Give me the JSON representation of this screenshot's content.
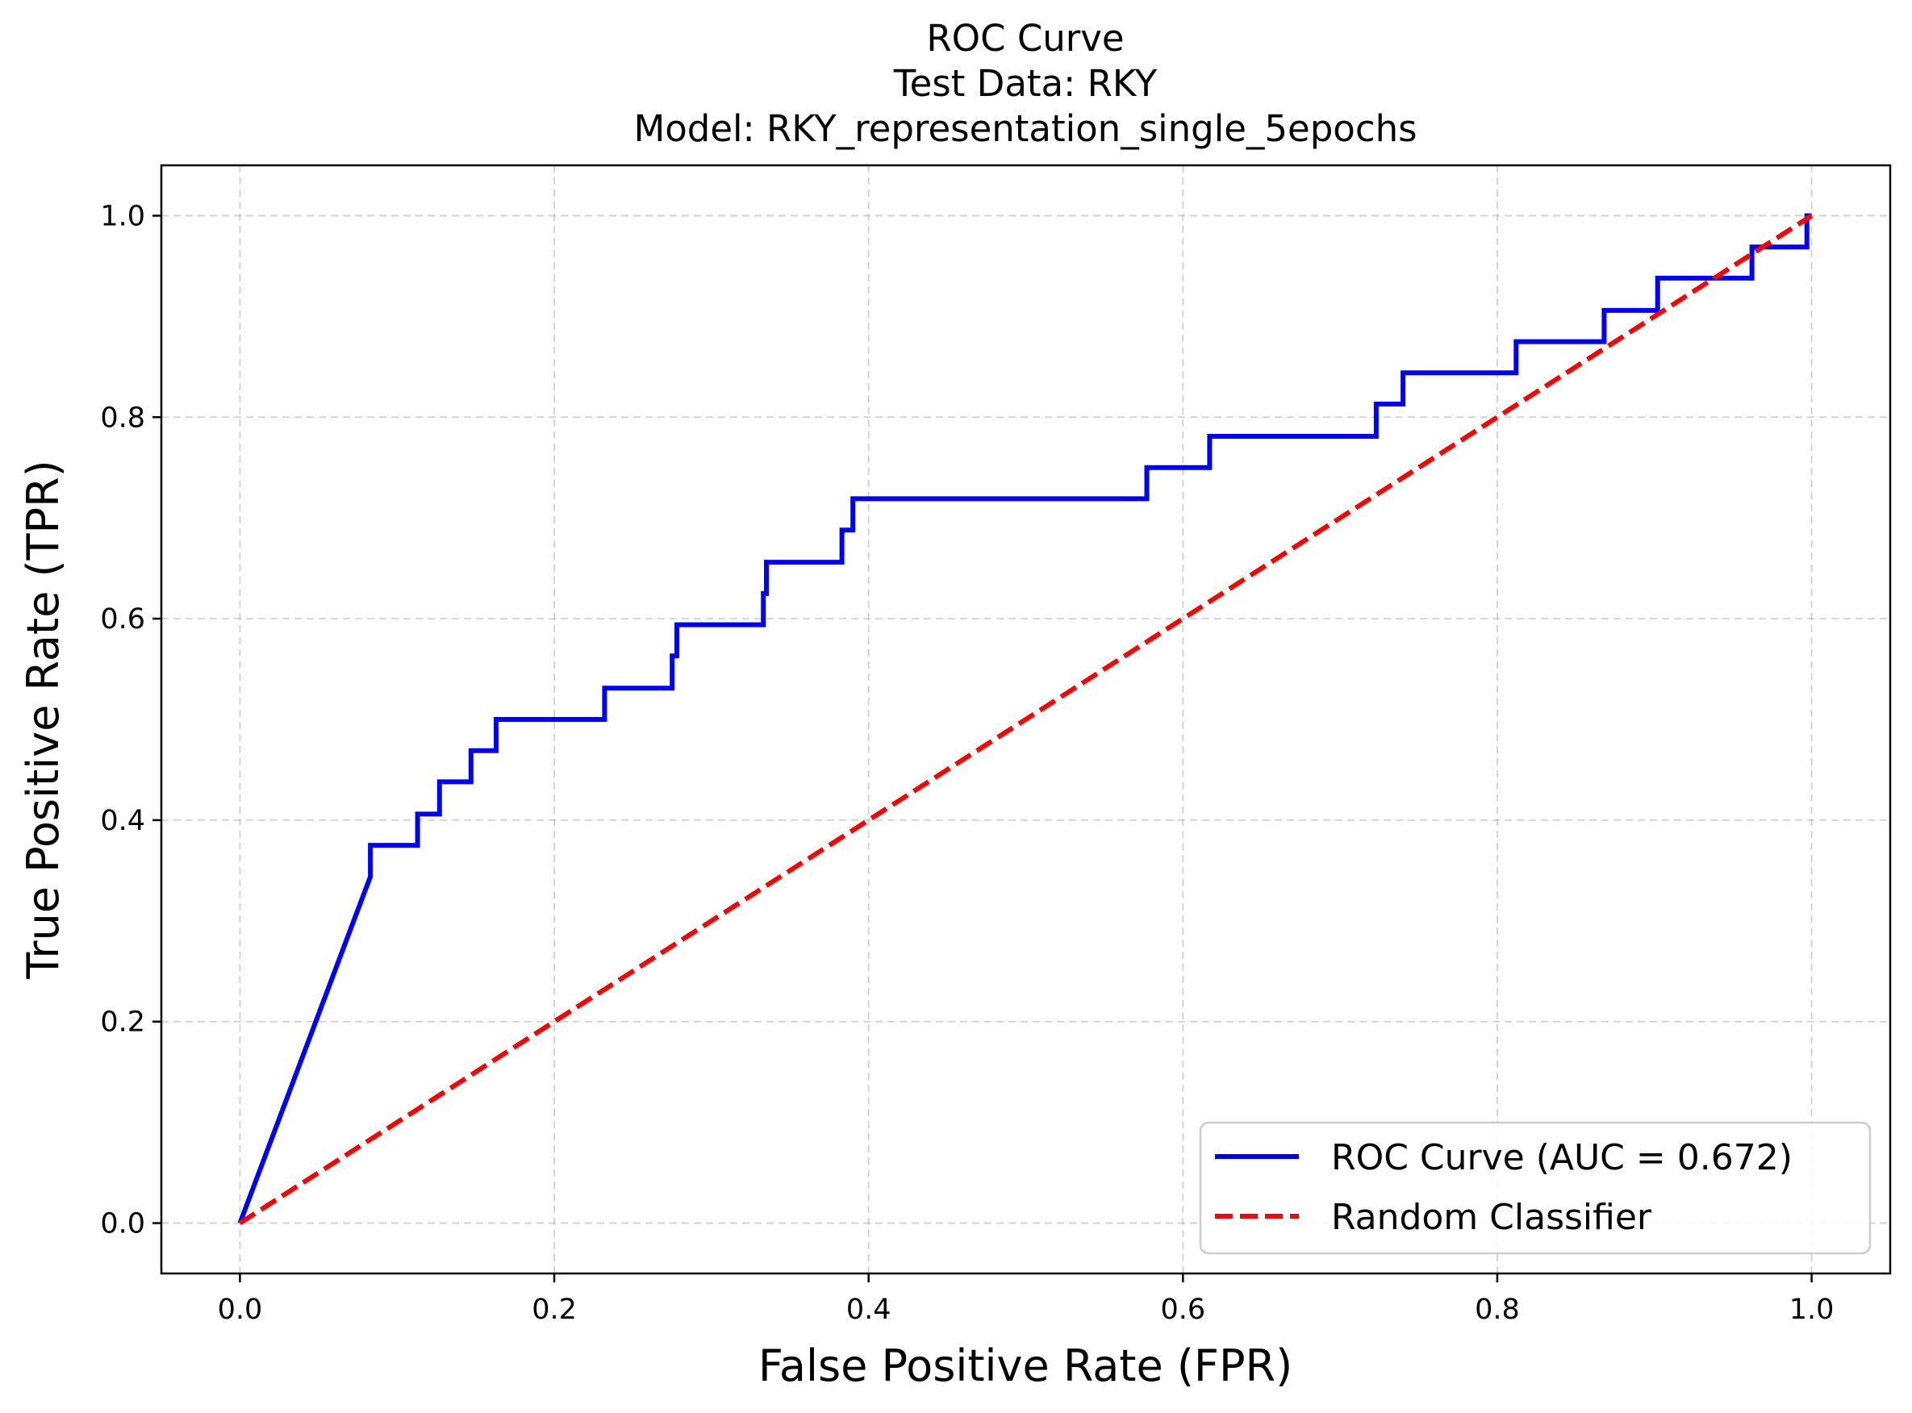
{
  "chart_data": {
    "type": "line",
    "title_lines": [
      "ROC Curve",
      "Test Data: RKY",
      "Model: RKY_representation_single_5epochs"
    ],
    "xlabel": "False Positive Rate (FPR)",
    "ylabel": "True Positive Rate (TPR)",
    "xlim": [
      -0.05,
      1.05
    ],
    "ylim": [
      -0.05,
      1.05
    ],
    "xticks": [
      0.0,
      0.2,
      0.4,
      0.6,
      0.8,
      1.0
    ],
    "yticks": [
      0.0,
      0.2,
      0.4,
      0.6,
      0.8,
      1.0
    ],
    "xtick_labels": [
      "0.0",
      "0.2",
      "0.4",
      "0.6",
      "0.8",
      "1.0"
    ],
    "ytick_labels": [
      "0.0",
      "0.2",
      "0.4",
      "0.6",
      "0.8",
      "1.0"
    ],
    "grid": true,
    "legend_position": "lower-right",
    "series": [
      {
        "name": "ROC Curve (AUC = 0.672)",
        "color": "#0000ff",
        "style": "solid",
        "x": [
          0.0,
          0.083,
          0.083,
          0.113,
          0.113,
          0.127,
          0.127,
          0.147,
          0.147,
          0.163,
          0.163,
          0.232,
          0.232,
          0.275,
          0.275,
          0.278,
          0.278,
          0.333,
          0.333,
          0.335,
          0.335,
          0.383,
          0.383,
          0.39,
          0.39,
          0.577,
          0.577,
          0.617,
          0.617,
          0.723,
          0.723,
          0.74,
          0.74,
          0.812,
          0.812,
          0.868,
          0.868,
          0.902,
          0.902,
          0.962,
          0.962,
          0.997,
          0.997,
          1.0
        ],
        "y": [
          0.0,
          0.344,
          0.375,
          0.375,
          0.406,
          0.406,
          0.438,
          0.438,
          0.469,
          0.469,
          0.5,
          0.5,
          0.531,
          0.531,
          0.563,
          0.563,
          0.594,
          0.594,
          0.625,
          0.625,
          0.656,
          0.656,
          0.688,
          0.688,
          0.719,
          0.719,
          0.75,
          0.75,
          0.781,
          0.781,
          0.813,
          0.813,
          0.844,
          0.844,
          0.875,
          0.875,
          0.906,
          0.906,
          0.938,
          0.938,
          0.969,
          0.969,
          1.0,
          1.0
        ]
      },
      {
        "name": "Random Classifier",
        "color": "#ff0000",
        "style": "dashed",
        "x": [
          0.0,
          1.0
        ],
        "y": [
          0.0,
          1.0
        ]
      }
    ]
  }
}
